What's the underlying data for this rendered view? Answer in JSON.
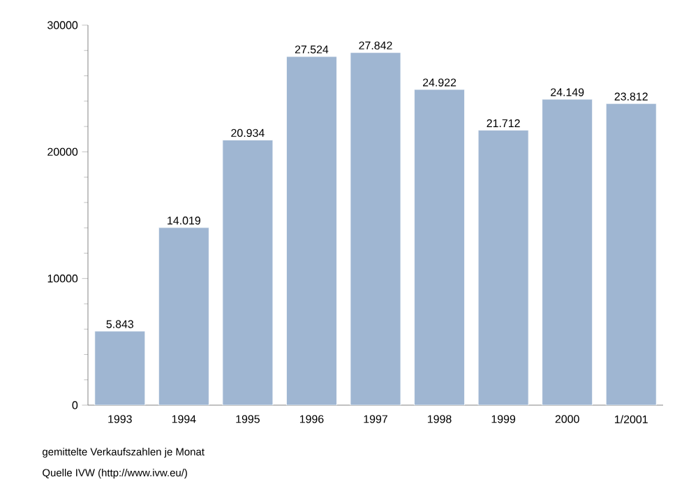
{
  "chart_data": {
    "type": "bar",
    "categories": [
      "1993",
      "1994",
      "1995",
      "1996",
      "1997",
      "1998",
      "1999",
      "2000",
      "1/2001"
    ],
    "values": [
      5843,
      14019,
      20934,
      27524,
      27842,
      24922,
      21712,
      24149,
      23812
    ],
    "value_labels": [
      "5.843",
      "14.019",
      "20.934",
      "27.524",
      "27.842",
      "24.922",
      "21.712",
      "24.149",
      "23.812"
    ],
    "color": "#9fb6d2",
    "ylim": [
      0,
      30000
    ],
    "yticks": [
      0,
      10000,
      20000,
      30000
    ],
    "grid": false,
    "annotations": [
      "gemittelte Verkaufszahlen je Monat",
      "Quelle IVW (http://www.ivw.eu/)"
    ]
  }
}
